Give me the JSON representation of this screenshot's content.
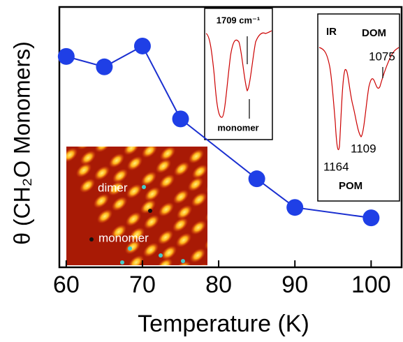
{
  "chart_data": {
    "type": "line",
    "x_label": "Temperature (K)",
    "y_label": "θ (CH₂O Monomers)",
    "x": [
      60,
      65,
      70,
      75,
      85,
      90,
      100
    ],
    "values": [
      0.81,
      0.77,
      0.85,
      0.57,
      0.34,
      0.23,
      0.19
    ],
    "color": "#1a2fd0",
    "marker_color": "#1f3fe6",
    "xlim": [
      59.1,
      104
    ],
    "xticks": [
      60,
      70,
      80,
      90,
      100
    ],
    "ylim": [
      0,
      1
    ],
    "annotations": {
      "ir_inset_1": {
        "peak": "1709 cm⁻¹",
        "label": "monomer"
      },
      "ir_inset_2": {
        "title": "IR",
        "dom": "DOM",
        "pom": "POM",
        "peaks": [
          "1075",
          "1109",
          "1164"
        ]
      },
      "stm_inset": {
        "dimer": "dimer",
        "monomer": "monomer"
      }
    }
  }
}
